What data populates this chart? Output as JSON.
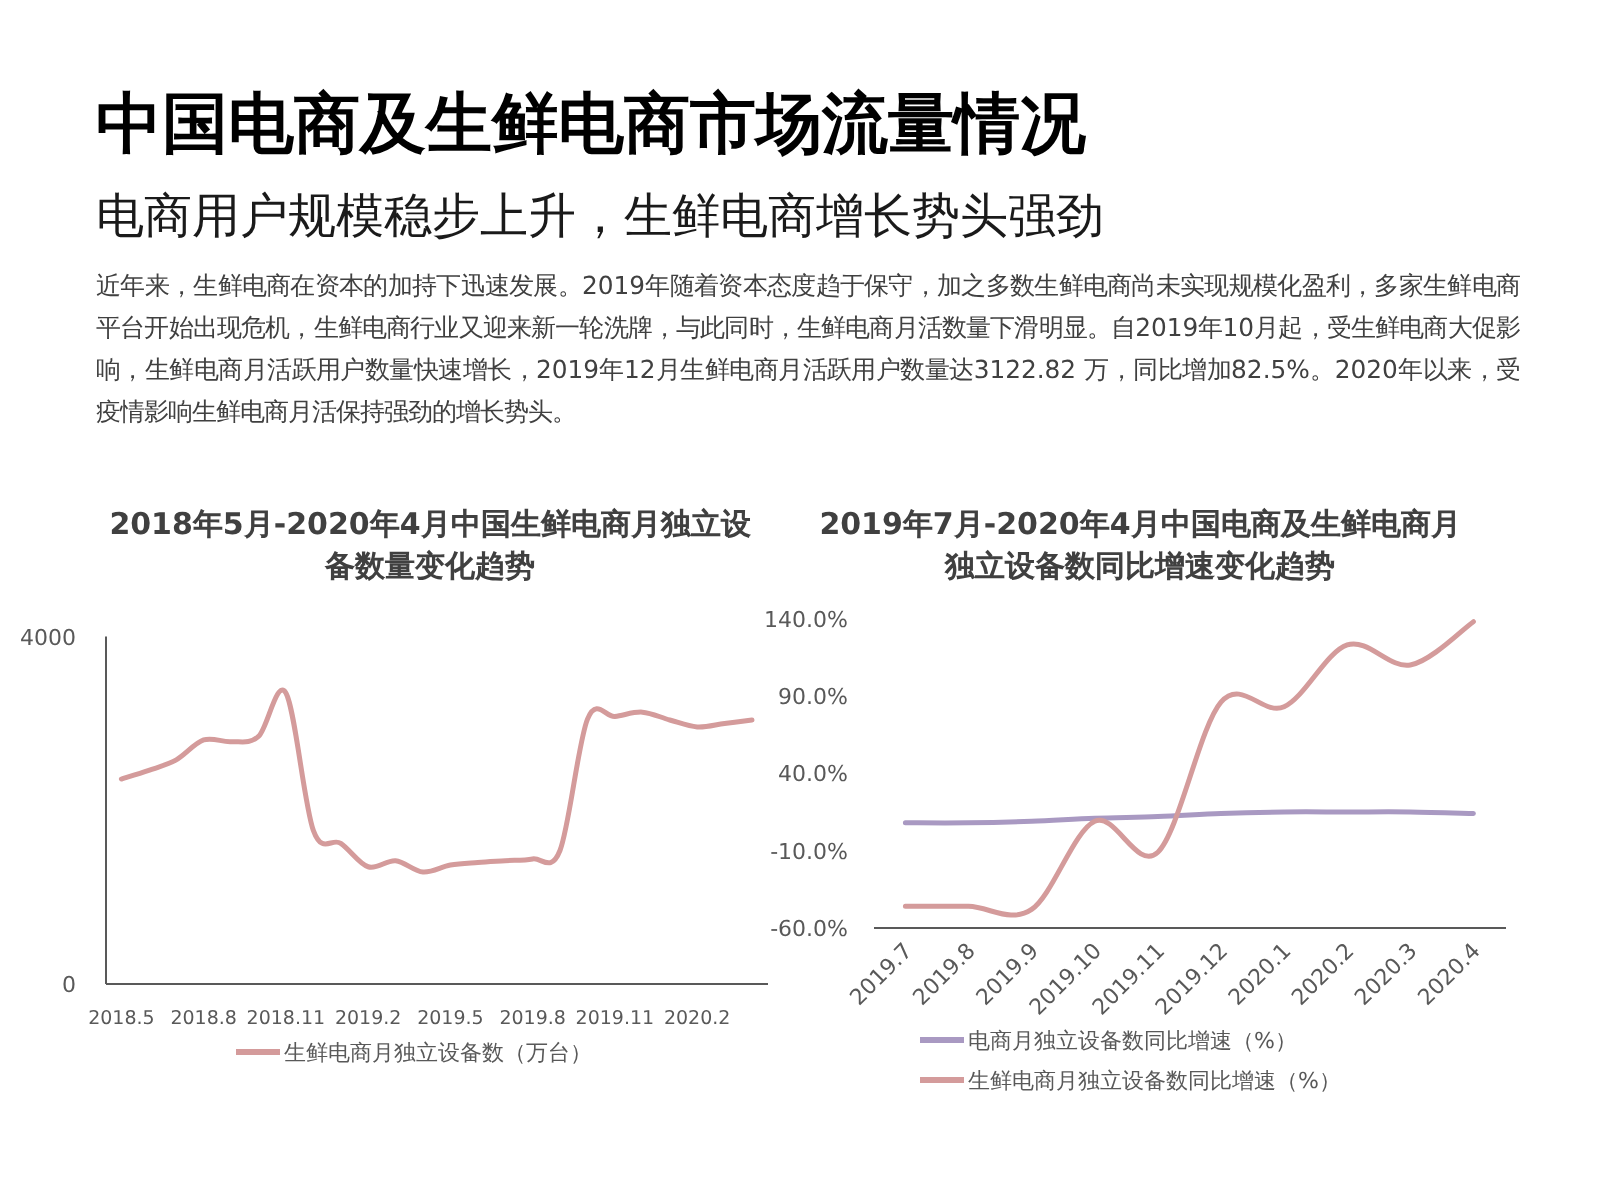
{
  "chart_data": [
    {
      "type": "other",
      "title": "中国电商及生鲜电商市场流量情况",
      "subtitle": "电商用户规模稳步上升，生鲜电商增长势头强劲",
      "annotations": [
        "近年来，生鲜电商在资本的加持下迅速发展。2019年随着资本态度趋于保守，加之多数生鲜电商尚未实现规模化盈利，多家生鲜电商平台开始出现危机，生鲜电商行业又迎来新一轮洗牌，与此同时，生鲜电商月活数量下滑明显。自2019年10月起，受生鲜电商大促影响，生鲜电商月活跃用户数量快速增长，2019年12月生鲜电商月活跃用户数量达3122.82 万，同比增加82.5%。2020年以来，受疫情影响生鲜电商月活保持强劲的增长势头。"
      ]
    },
    {
      "type": "line",
      "title": "2018年5月-2020年4月中国生鲜电商月独立设备数量变化趋势",
      "categories": [
        "2018.5",
        null,
        null,
        "2018.8",
        null,
        null,
        "2018.11",
        null,
        null,
        "2019.2",
        null,
        null,
        "2019.5",
        null,
        null,
        "2019.8",
        null,
        null,
        "2019.11",
        null,
        null,
        "2020.2",
        null,
        null
      ],
      "series": [
        {
          "name": "生鲜电商月独立设备数（万台）",
          "color": "#d49b9b",
          "values": [
            2360,
            2460,
            2580,
            2810,
            2790,
            2850,
            3350,
            1770,
            1620,
            1350,
            1420,
            1290,
            1370,
            1400,
            1420,
            1440,
            1540,
            3050,
            3080,
            3130,
            3040,
            2960,
            3000,
            3040
          ]
        }
      ],
      "ylim": [
        0,
        4000
      ],
      "yticks": [
        0,
        4000
      ],
      "legend": "bottom",
      "grid": false
    },
    {
      "type": "line",
      "title": "2019年7月-2020年4月中国电商及生鲜电商月独立设备数同比增速变化趋势",
      "categories": [
        "2019.7",
        "2019.8",
        "2019.9",
        "2019.10",
        "2019.11",
        "2019.12",
        "2020.1",
        "2020.2",
        "2020.3",
        "2020.4"
      ],
      "series": [
        {
          "name": "电商月独立设备数同比增速（%）",
          "color": "#a999c2",
          "values": [
            8,
            8,
            9,
            11,
            12,
            14,
            15,
            15,
            15,
            14
          ]
        },
        {
          "name": "生鲜电商月独立设备数同比增速（%）",
          "color": "#d49b9b",
          "values": [
            -46,
            -46,
            -48,
            9,
            -11,
            86,
            83,
            123,
            110,
            138
          ]
        }
      ],
      "ylim": [
        -60,
        140
      ],
      "yticks": [
        {
          "value": -60,
          "label": "-60.0%"
        },
        {
          "value": -10,
          "label": "-10.0%"
        },
        {
          "value": 40,
          "label": "40.0%"
        },
        {
          "value": 90,
          "label": "90.0%"
        },
        {
          "value": 140,
          "label": "140.0%"
        }
      ],
      "legend": "bottom",
      "grid": false
    }
  ]
}
